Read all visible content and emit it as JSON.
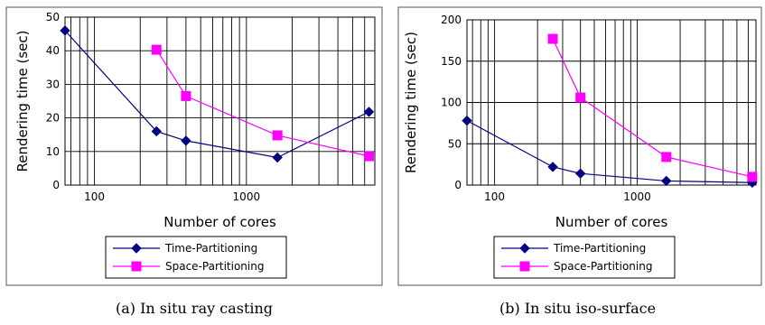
{
  "chart_data": [
    {
      "type": "line",
      "xscale": "log",
      "x_ticks": [
        100,
        1000
      ],
      "xlim": [
        64,
        7000
      ],
      "ylim": [
        0,
        50
      ],
      "y_ticks": [
        0,
        10,
        20,
        30,
        40,
        50
      ],
      "xlabel": "Number of cores",
      "ylabel": "Rendering time (sec)",
      "grid": true,
      "legend_position": "bottom",
      "caption": "(a) In situ ray casting",
      "series": [
        {
          "name": "Time-Partitioning",
          "color": "#000080",
          "marker": "diamond",
          "points": [
            [
              64,
              46
            ],
            [
              256,
              16
            ],
            [
              400,
              13.2
            ],
            [
              1600,
              8.2
            ],
            [
              6400,
              21.8
            ]
          ]
        },
        {
          "name": "Space-Partitioning",
          "color": "#ff00ff",
          "marker": "square",
          "points": [
            [
              256,
              40.3
            ],
            [
              400,
              26.5
            ],
            [
              1600,
              14.8
            ],
            [
              6400,
              8.6
            ]
          ]
        }
      ]
    },
    {
      "type": "line",
      "xscale": "log",
      "x_ticks": [
        100,
        1000
      ],
      "xlim": [
        64,
        6800
      ],
      "ylim": [
        0,
        200
      ],
      "y_ticks": [
        0,
        50,
        100,
        150,
        200
      ],
      "xlabel": "Number of cores",
      "ylabel": "Rendering time (sec)",
      "grid": true,
      "legend_position": "bottom",
      "caption": "(b) In situ iso-surface",
      "series": [
        {
          "name": "Time-Partitioning",
          "color": "#000080",
          "marker": "diamond",
          "points": [
            [
              64,
              78
            ],
            [
              256,
              22
            ],
            [
              400,
              14
            ],
            [
              1600,
              5
            ],
            [
              6400,
              3
            ]
          ]
        },
        {
          "name": "Space-Partitioning",
          "color": "#ff00ff",
          "marker": "square",
          "points": [
            [
              256,
              177
            ],
            [
              400,
              106
            ],
            [
              1600,
              34
            ],
            [
              6400,
              10
            ]
          ]
        }
      ]
    }
  ]
}
